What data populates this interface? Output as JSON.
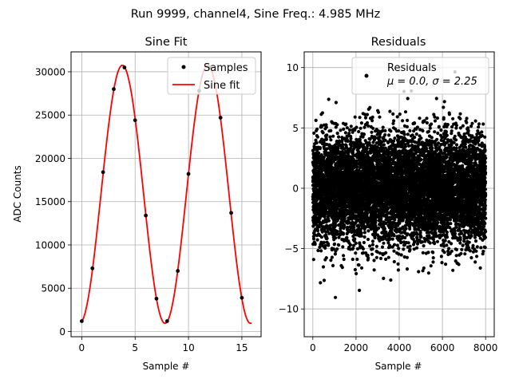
{
  "figure": {
    "suptitle": "Run 9999, channel4, Sine Freq.: 4.985 MHz"
  },
  "chart_data": [
    {
      "type": "line",
      "title": "Sine Fit",
      "xlabel": "Sample #",
      "ylabel": "ADC Counts",
      "xlim": [
        -1.0,
        16.8
      ],
      "ylim": [
        -600,
        32300
      ],
      "xticks": [
        0,
        5,
        10,
        15
      ],
      "yticks": [
        0,
        5000,
        10000,
        15000,
        20000,
        25000,
        30000
      ],
      "grid": true,
      "legend": {
        "placement": "top-right",
        "entries": [
          "Samples",
          "Sine fit"
        ]
      },
      "series": [
        {
          "name": "Samples",
          "style": "scatter",
          "color": "#000000",
          "x": [
            0,
            1,
            2,
            3,
            4,
            5,
            6,
            7,
            8,
            9,
            10,
            11,
            12,
            13,
            14,
            15
          ],
          "y": [
            1200,
            7300,
            18400,
            28000,
            30500,
            24400,
            13400,
            3800,
            1200,
            7000,
            18200,
            27800,
            30500,
            24700,
            13700,
            3900
          ]
        },
        {
          "name": "Sine fit",
          "style": "line",
          "color": "#ff0000",
          "model": {
            "offset": 15850,
            "amplitude": 14900,
            "period_samples": 8.0,
            "peak_at": 3.8
          },
          "x_range": [
            0,
            15.9
          ]
        }
      ]
    },
    {
      "type": "scatter",
      "title": "Residuals",
      "xlabel": "Sample #",
      "ylabel": "",
      "xlim": [
        -400,
        8400
      ],
      "ylim": [
        -12.3,
        11.3
      ],
      "xticks": [
        0,
        2000,
        4000,
        6000,
        8000
      ],
      "yticks": [
        -10,
        -5,
        0,
        5,
        10
      ],
      "grid": true,
      "legend": {
        "placement": "top-right",
        "entries": [
          "Residuals",
          "μ = 0.0, σ = 2.25"
        ]
      },
      "series": [
        {
          "name": "Residuals",
          "color": "#000000",
          "n_points": 8000,
          "mean": 0.0,
          "std": 2.25,
          "x_range": [
            0,
            8000
          ]
        }
      ]
    }
  ]
}
